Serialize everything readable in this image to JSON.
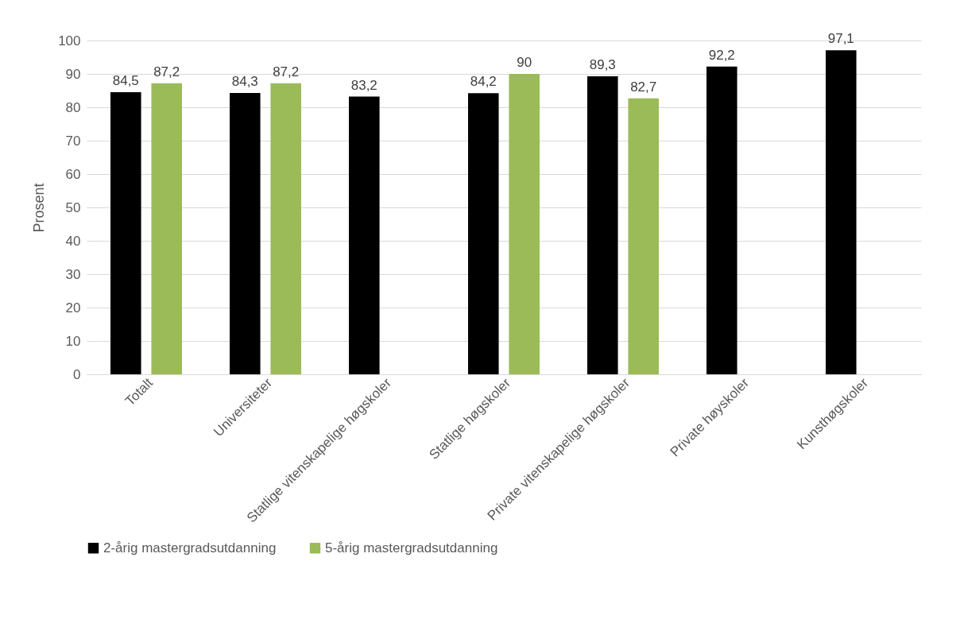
{
  "chart_data": {
    "type": "bar",
    "ylabel": "Prosent",
    "categories": [
      "Totalt",
      "Universiteter",
      "Statlige vitenskapelige høgskoler",
      "Statlige høgskoler",
      "Private vitenskapelige høgskoler",
      "Private høyskoler",
      "Kunsthøgskoler"
    ],
    "series": [
      {
        "name": "2-årig mastergradsutdanning",
        "color": "#000000",
        "values": [
          84.5,
          84.3,
          83.2,
          84.2,
          89.3,
          92.2,
          97.1
        ],
        "value_labels": [
          "84,5",
          "84,3",
          "83,2",
          "84,2",
          "89,3",
          "92,2",
          "97,1"
        ]
      },
      {
        "name": "5-årig mastergradsutdanning",
        "color": "#9bbb59",
        "values": [
          87.2,
          87.2,
          null,
          90,
          82.7,
          null,
          null
        ],
        "value_labels": [
          "87,2",
          "87,2",
          null,
          "90",
          "82,7",
          null,
          null
        ]
      }
    ],
    "ylim": [
      0,
      100
    ],
    "yticks": [
      0,
      10,
      20,
      30,
      40,
      50,
      60,
      70,
      80,
      90,
      100
    ],
    "grid": "y",
    "legend": "bottom"
  }
}
